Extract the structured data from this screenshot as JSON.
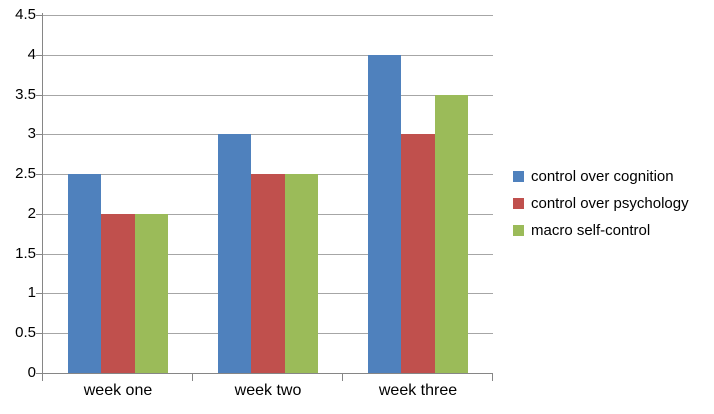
{
  "chart_data": {
    "type": "bar",
    "title": "",
    "xlabel": "",
    "ylabel": "",
    "categories": [
      "week one",
      "week two",
      "week three"
    ],
    "series": [
      {
        "name": "control over cognition",
        "color": "#4F81BD",
        "values": [
          2.5,
          3.0,
          4.0
        ]
      },
      {
        "name": "control over psychology",
        "color": "#C0504D",
        "values": [
          2.0,
          2.5,
          3.0
        ]
      },
      {
        "name": "macro self-control",
        "color": "#9BBB59",
        "values": [
          2.0,
          2.5,
          3.5
        ]
      }
    ],
    "ylim": [
      0,
      4.5
    ],
    "ytick_step": 0.5,
    "ytick_labels": [
      "0",
      "0.5",
      "1",
      "1.5",
      "2",
      "2.5",
      "3",
      "3.5",
      "4",
      "4.5"
    ],
    "grid": true,
    "legend_position": "right"
  },
  "colors": {
    "background": "#FFFFFF",
    "axis_line": "#868686",
    "gridline": "#A6A6A6",
    "text": "#000000"
  }
}
